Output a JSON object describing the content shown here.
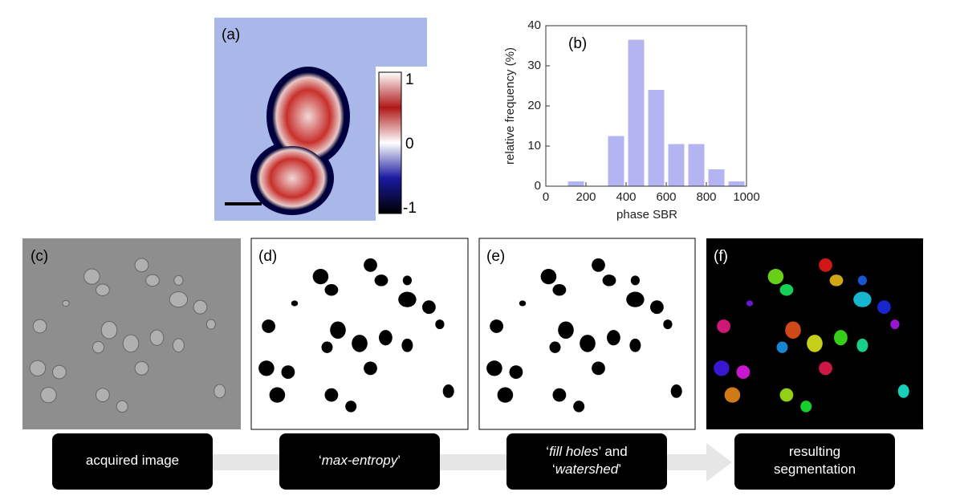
{
  "panels": {
    "a": {
      "label": "(a)",
      "colorbar": [
        "1",
        "0",
        "-1"
      ]
    },
    "c": {
      "label": "(c)"
    },
    "d": {
      "label": "(d)"
    },
    "e": {
      "label": "(e)"
    },
    "f": {
      "label": "(f)"
    }
  },
  "chart_data": {
    "type": "histogram",
    "label": "(b)",
    "xlabel": "phase SBR",
    "ylabel": "relative frequency (%)",
    "bins": [
      100,
      200,
      300,
      400,
      500,
      600,
      700,
      800,
      900,
      1000
    ],
    "values": [
      1.2,
      0,
      12.5,
      36.5,
      24,
      10.5,
      10.5,
      4.2,
      1.2
    ],
    "color": "#b4b4f2",
    "xlim": [
      0,
      1000
    ],
    "ylim": [
      0,
      40
    ],
    "xticks": [
      0,
      200,
      400,
      600,
      800,
      1000
    ],
    "yticks": [
      0,
      10,
      20,
      30,
      40
    ]
  },
  "steps": [
    {
      "lines": [
        [
          {
            "text": "acquired image"
          }
        ]
      ]
    },
    {
      "lines": [
        [
          {
            "text": "‘"
          },
          {
            "text": "max-entropy",
            "italic": true
          },
          {
            "text": "’"
          }
        ]
      ]
    },
    {
      "lines": [
        [
          {
            "text": "‘"
          },
          {
            "text": "fill holes",
            "italic": true
          },
          {
            "text": "’ and"
          }
        ],
        [
          {
            "text": "‘"
          },
          {
            "text": "watershed",
            "italic": true
          },
          {
            "text": "’"
          }
        ]
      ]
    },
    {
      "lines": [
        [
          {
            "text": "resulting"
          }
        ],
        [
          {
            "text": "segmentation"
          }
        ]
      ]
    }
  ]
}
